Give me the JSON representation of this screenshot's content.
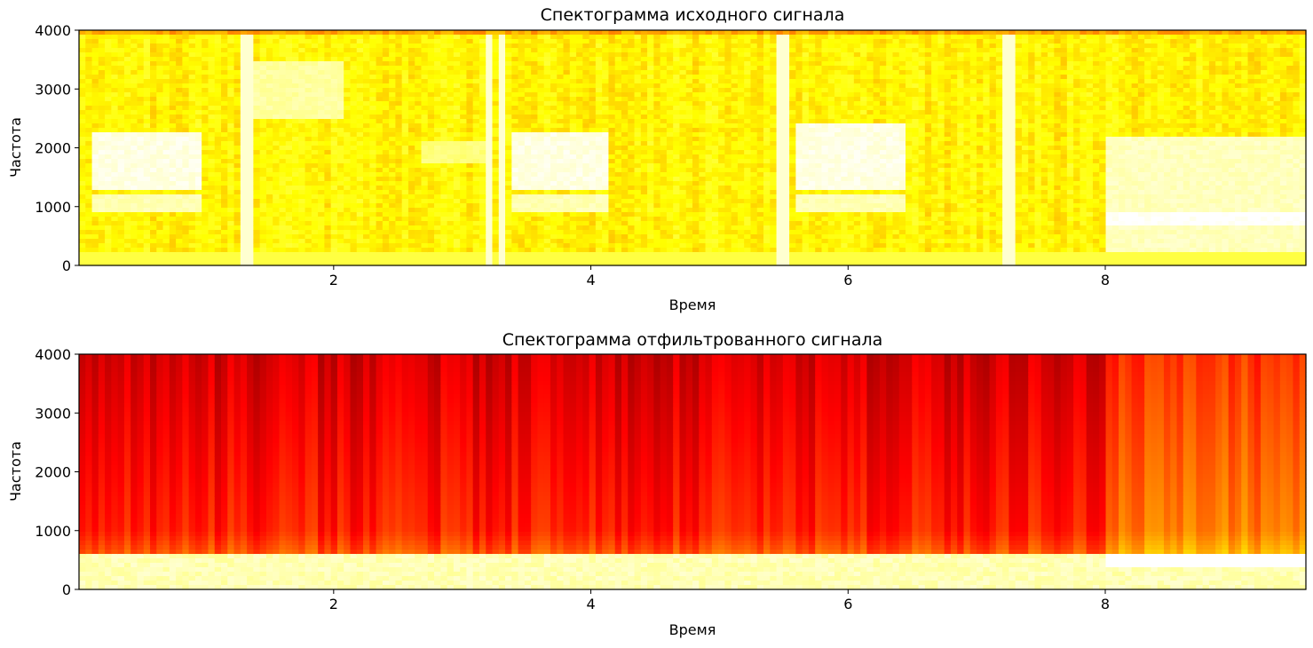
{
  "figure": {
    "background": "#ffffff",
    "colormap": "hot"
  },
  "chart_data": [
    {
      "type": "heatmap",
      "title": "Спектограмма исходного сигнала",
      "xlabel": "Время",
      "ylabel": "Частота",
      "xlim": [
        0.02,
        9.56
      ],
      "ylim": [
        0,
        4000
      ],
      "xticks": [
        2,
        4,
        6,
        8
      ],
      "yticks": [
        0,
        1000,
        2000,
        3000,
        4000
      ],
      "grid": false,
      "legend": "none",
      "colormap": "hot",
      "description_values": {
        "background_level": 0.72,
        "bright_segments": [
          {
            "t_start": 0.1,
            "t_end": 0.95,
            "f_low": 1300,
            "f_high": 2300,
            "level": 0.97
          },
          {
            "t_start": 0.1,
            "t_end": 0.95,
            "f_low": 900,
            "f_high": 1200,
            "level": 0.92
          },
          {
            "t_start": 1.4,
            "t_end": 2.1,
            "f_low": 2500,
            "f_high": 3500,
            "level": 0.9
          },
          {
            "t_start": 2.7,
            "t_end": 3.2,
            "f_low": 1700,
            "f_high": 2100,
            "level": 0.86
          },
          {
            "t_start": 3.4,
            "t_end": 4.15,
            "f_low": 1300,
            "f_high": 2300,
            "level": 0.97
          },
          {
            "t_start": 3.4,
            "t_end": 4.15,
            "f_low": 900,
            "f_high": 1200,
            "level": 0.92
          },
          {
            "t_start": 5.6,
            "t_end": 6.45,
            "f_low": 1300,
            "f_high": 2400,
            "level": 0.97
          },
          {
            "t_start": 5.6,
            "t_end": 6.45,
            "f_low": 900,
            "f_high": 1200,
            "level": 0.92
          },
          {
            "t_start": 8.0,
            "t_end": 9.56,
            "f_low": 200,
            "f_high": 2200,
            "level": 0.93
          },
          {
            "t_start": 8.0,
            "t_end": 9.56,
            "f_low": 700,
            "f_high": 900,
            "level": 1.0
          }
        ],
        "vertical_stripes": [
          1.33,
          3.2,
          3.3,
          5.45,
          5.52,
          7.25,
          7.28
        ]
      }
    },
    {
      "type": "heatmap",
      "title": "Спектограмма отфильтрованного сигнала",
      "xlabel": "Время",
      "ylabel": "Частота",
      "xlim": [
        0.02,
        9.56
      ],
      "ylim": [
        0,
        4000
      ],
      "xticks": [
        2,
        4,
        6,
        8
      ],
      "yticks": [
        0,
        1000,
        2000,
        3000,
        4000
      ],
      "grid": false,
      "legend": "none",
      "colormap": "hot",
      "description_values": {
        "cutoff_frequency": 630,
        "passband_level": 0.92,
        "stopband_level_low": 0.3,
        "stopband_level_high": 0.42,
        "bright_region_after": 8.0,
        "bright_region_level": 0.55
      }
    }
  ]
}
